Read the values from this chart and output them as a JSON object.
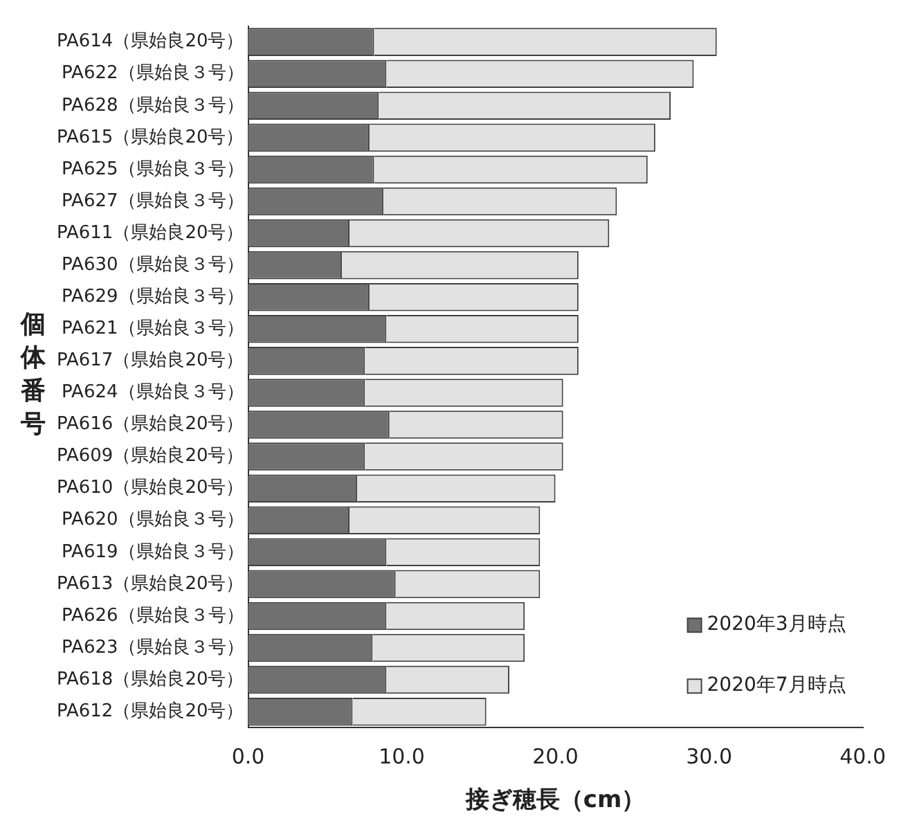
{
  "chart_data": {
    "type": "bar",
    "orientation": "horizontal",
    "stacked": true,
    "xlabel": "接ぎ穂長（cm）",
    "ylabel": "個体番号",
    "categories": [
      "PA614（県始良20号）",
      "PA622（県始良３号）",
      "PA628（県始良３号）",
      "PA615（県始良20号）",
      "PA625（県始良３号）",
      "PA627（県始良３号）",
      "PA611（県始良20号）",
      "PA630（県始良３号）",
      "PA629（県始良３号）",
      "PA621（県始良３号）",
      "PA617（県始良20号）",
      "PA624（県始良３号）",
      "PA616（県始良20号）",
      "PA609（県始良20号）",
      "PA610（県始良20号）",
      "PA620（県始良３号）",
      "PA619（県始良３号）",
      "PA613（県始良20号）",
      "PA626（県始良３号）",
      "PA623（県始良３号）",
      "PA618（県始良20号）",
      "PA612（県始良20号）"
    ],
    "series": [
      {
        "name": "2020年3月時点",
        "color": "#707070",
        "values": [
          8.2,
          9.0,
          8.5,
          7.9,
          8.2,
          8.8,
          6.6,
          6.1,
          7.9,
          9.0,
          7.6,
          7.6,
          9.2,
          7.6,
          7.1,
          6.6,
          9.0,
          9.6,
          9.0,
          8.1,
          9.0,
          6.8
        ]
      },
      {
        "name": "2020年7月時点",
        "color": "#e2e2e2",
        "values": [
          22.3,
          20.0,
          19.0,
          18.6,
          17.8,
          15.2,
          16.9,
          15.4,
          13.6,
          12.5,
          13.9,
          12.9,
          11.3,
          12.9,
          12.9,
          12.4,
          10.0,
          9.4,
          9.0,
          9.9,
          8.0,
          8.7
        ]
      }
    ],
    "xlim": [
      0,
      40
    ],
    "xticks": [
      {
        "value": 0,
        "label": "0.0"
      },
      {
        "value": 10,
        "label": "10.0"
      },
      {
        "value": 20,
        "label": "20.0"
      },
      {
        "value": 30,
        "label": "30.0"
      },
      {
        "value": 40,
        "label": "40.0"
      }
    ],
    "grid": false,
    "legend": "bottom right"
  }
}
